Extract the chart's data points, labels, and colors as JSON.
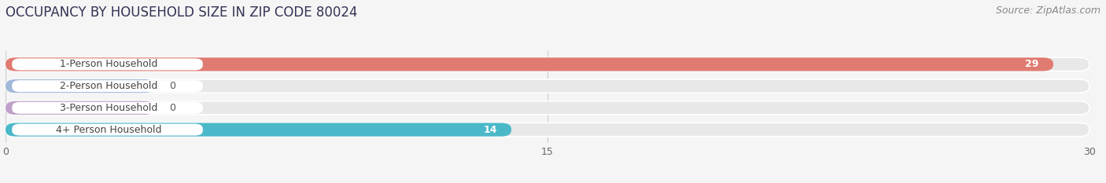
{
  "title": "OCCUPANCY BY HOUSEHOLD SIZE IN ZIP CODE 80024",
  "source_text": "Source: ZipAtlas.com",
  "categories": [
    "1-Person Household",
    "2-Person Household",
    "3-Person Household",
    "4+ Person Household"
  ],
  "values": [
    29,
    0,
    0,
    14
  ],
  "bar_colors": [
    "#e07b72",
    "#a0b8d8",
    "#c0a0c8",
    "#4ab8c8"
  ],
  "xlim": [
    0,
    30
  ],
  "xticks": [
    0,
    15,
    30
  ],
  "background_color": "#f5f5f5",
  "bar_bg_color": "#e8e8e8",
  "title_fontsize": 12,
  "source_fontsize": 9,
  "label_fontsize": 9,
  "value_fontsize": 9
}
